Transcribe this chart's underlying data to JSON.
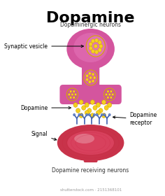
{
  "title": "Dopamine",
  "title_fontsize": 16,
  "label_dopaminergic": "Dopaminergic neurons",
  "label_synaptic": "Synaptic vesicle",
  "label_dopamine": "Dopamine",
  "label_signal": "Signal",
  "label_receptor": "Dopamine\nreceptor",
  "label_receiving": "Dopamine receiving neurons",
  "label_watermark": "shutterstock.com · 2151368101",
  "bg_color": "#ffffff",
  "neuron_top_color": "#d4559e",
  "neuron_top_light": "#e87cc0",
  "neuron_bottom_color": "#c8334a",
  "neuron_bottom_light": "#e85070",
  "dot_color": "#f5d020",
  "dot_border": "#d4a800",
  "receptor_color": "#4060b0",
  "receptor_light": "#7090d0"
}
